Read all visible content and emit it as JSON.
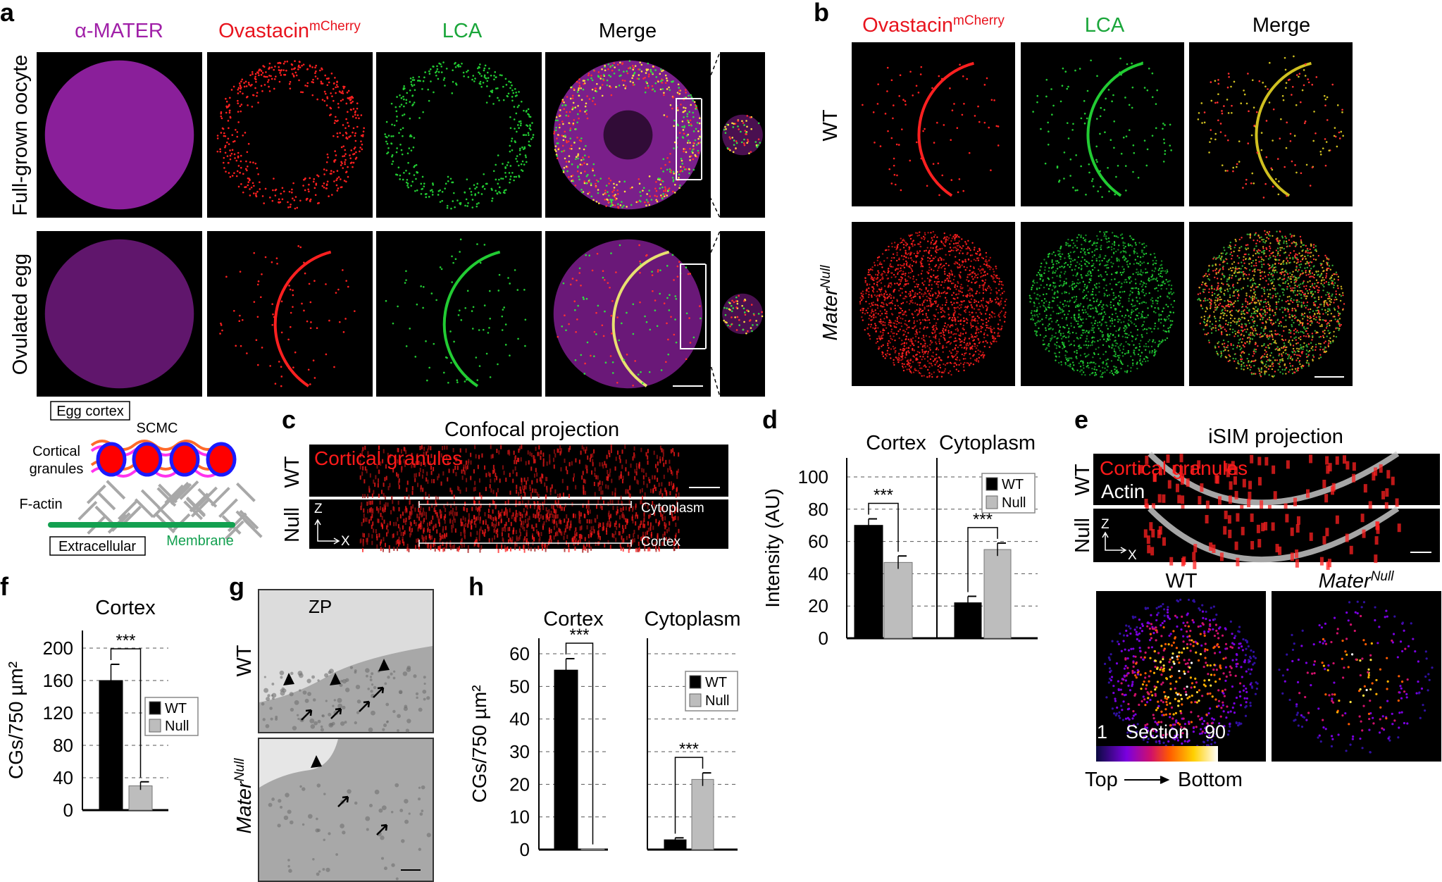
{
  "panel_letters": {
    "a": "a",
    "b": "b",
    "c": "c",
    "d": "d",
    "e": "e",
    "f": "f",
    "g": "g",
    "h": "h"
  },
  "panel_a": {
    "columns": [
      "α-MATER",
      "Ovastacin",
      "LCA",
      "Merge"
    ],
    "ovastacin_superscript": "mCherry",
    "rows": [
      "Full-grown oocyte",
      "Ovulated egg"
    ]
  },
  "panel_b": {
    "columns": [
      "Ovastacin",
      "LCA",
      "Merge"
    ],
    "ovastacin_superscript": "mCherry",
    "rows": [
      "WT",
      "Mater"
    ],
    "mater_superscript": "Null"
  },
  "schematic": {
    "egg_cortex": "Egg cortex",
    "scmc": "SCMC",
    "cortical_granules_1": "Cortical",
    "cortical_granules_2": "granules",
    "f_actin": "F-actin",
    "extracellular": "Extracellular",
    "membrane": "Membrane",
    "colors": {
      "granule": "#ff0000",
      "granule_rim": "#1a1aff",
      "scmc_1": "#ff6a2a",
      "scmc_2": "#ff33ee",
      "actin": "#a8a8a8",
      "membrane": "#13a050"
    }
  },
  "panel_c": {
    "title": "Confocal projection",
    "rows": [
      "WT",
      "Null"
    ],
    "overlay": "Cortical granules",
    "axis_z": "Z",
    "axis_x": "X",
    "cytoplasm": "Cytoplasm",
    "cortex": "Cortex"
  },
  "panel_e": {
    "title": "iSIM projection",
    "rows": [
      "WT",
      "Null"
    ],
    "overlay_1": "Cortical granules",
    "overlay_2": "Actin",
    "axis_z": "Z",
    "axis_x": "X",
    "wt": "WT",
    "mater": "Mater",
    "mater_superscript": "Null",
    "colorbar_start": "1",
    "colorbar_label": "Section",
    "colorbar_end": "90",
    "top": "Top",
    "bottom": "Bottom"
  },
  "panel_g": {
    "zp": "ZP",
    "rows": [
      "WT",
      "Mater"
    ],
    "mater_superscript": "Null"
  },
  "chart_data": [
    {
      "id": "d",
      "type": "bar",
      "ylabel": "Intensity (AU)",
      "ylim": [
        0,
        110
      ],
      "yticks": [
        0,
        20,
        40,
        60,
        80,
        100
      ],
      "grid": "dashed",
      "legend": [
        "WT",
        "Null"
      ],
      "legend_placement": "top-right",
      "colors": {
        "WT": "#000000",
        "Null": "#bdbdbd"
      },
      "groups": [
        {
          "title": "Cortex",
          "series": [
            {
              "name": "WT",
              "value": 70,
              "error": 4
            },
            {
              "name": "Null",
              "value": 47,
              "error": 4
            }
          ],
          "significance": "***"
        },
        {
          "title": "Cytoplasm",
          "series": [
            {
              "name": "WT",
              "value": 22,
              "error": 4
            },
            {
              "name": "Null",
              "value": 55,
              "error": 4
            }
          ],
          "significance": "***"
        }
      ]
    },
    {
      "id": "f",
      "type": "bar",
      "ylabel": "CGs/750 µm²",
      "ylim": [
        0,
        220
      ],
      "yticks": [
        0,
        40,
        80,
        120,
        160,
        200
      ],
      "grid": "dashed",
      "legend": [
        "WT",
        "Null"
      ],
      "legend_placement": "right",
      "colors": {
        "WT": "#000000",
        "Null": "#bdbdbd"
      },
      "groups": [
        {
          "title": "Cortex",
          "series": [
            {
              "name": "WT",
              "value": 160,
              "error": 20
            },
            {
              "name": "Null",
              "value": 30,
              "error": 5
            }
          ],
          "significance": "***"
        }
      ]
    },
    {
      "id": "h",
      "type": "bar",
      "ylabel": "CGs/750 µm²",
      "ylim": [
        0,
        65
      ],
      "yticks": [
        0,
        10,
        20,
        30,
        40,
        50,
        60
      ],
      "grid": "dashed",
      "legend": [
        "WT",
        "Null"
      ],
      "legend_placement": "top-right",
      "colors": {
        "WT": "#000000",
        "Null": "#bdbdbd"
      },
      "groups": [
        {
          "title": "Cortex",
          "series": [
            {
              "name": "WT",
              "value": 55,
              "error": 3.5
            },
            {
              "name": "Null",
              "value": 0.3,
              "error": 0
            }
          ],
          "significance": "***"
        },
        {
          "title": "Cytoplasm",
          "series": [
            {
              "name": "WT",
              "value": 3,
              "error": 0.6
            },
            {
              "name": "Null",
              "value": 21.5,
              "error": 2
            }
          ],
          "significance": "***"
        }
      ]
    }
  ]
}
